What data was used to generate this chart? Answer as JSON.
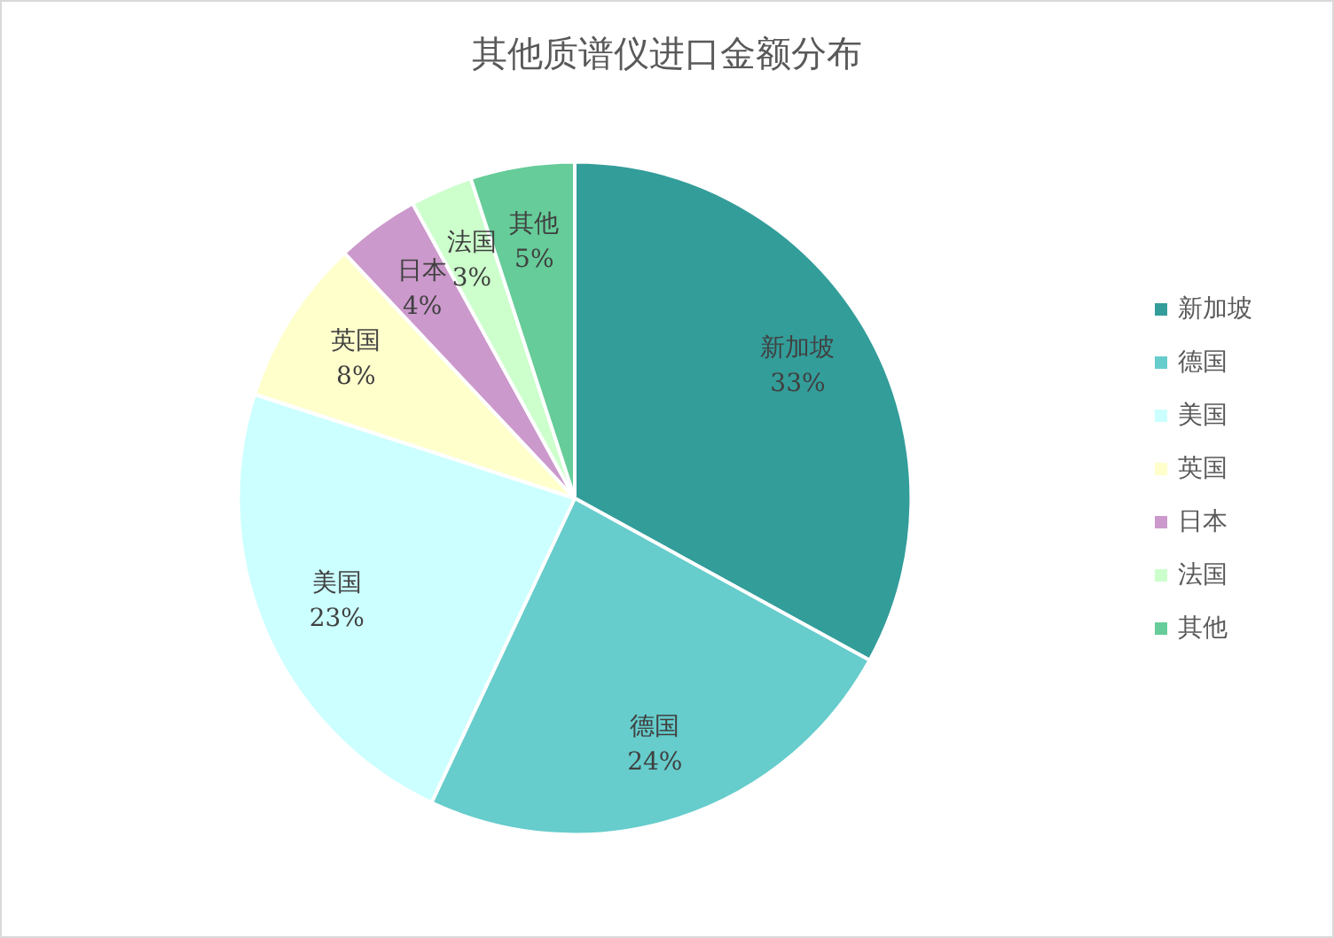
{
  "chart_data": {
    "type": "pie",
    "title": "其他质谱仪进口金额分布",
    "categories": [
      "新加坡",
      "德国",
      "美国",
      "英国",
      "日本",
      "法国",
      "其他"
    ],
    "values": [
      33,
      24,
      23,
      8,
      4,
      3,
      5
    ],
    "value_labels": [
      "33%",
      "24%",
      "23%",
      "8%",
      "4%",
      "3%",
      "5%"
    ],
    "colors": [
      "#339d9a",
      "#66cccc",
      "#ccffff",
      "#ffffcc",
      "#cc99cc",
      "#ccffcc",
      "#66cc99"
    ],
    "legend": "right"
  }
}
